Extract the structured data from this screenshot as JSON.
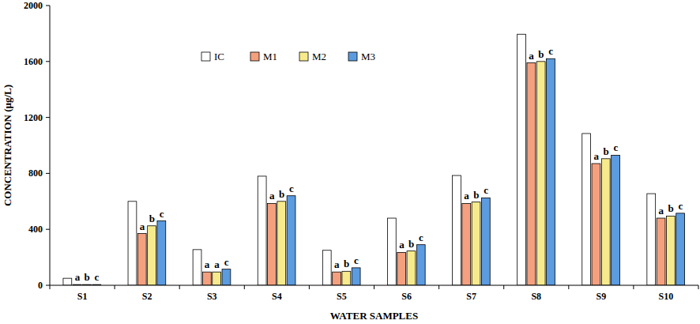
{
  "chart_data": {
    "type": "bar",
    "x_label": "WATER SAMPLES",
    "y_label": "CONCENTRATION (µg/L)",
    "categories": [
      "S1",
      "S2",
      "S3",
      "S4",
      "S5",
      "S6",
      "S7",
      "S8",
      "S9",
      "S10"
    ],
    "series": [
      {
        "name": "IC",
        "color": "#ffffff",
        "values": [
          50,
          600,
          255,
          780,
          250,
          480,
          785,
          1795,
          1085,
          655
        ]
      },
      {
        "name": "M1",
        "color": "#f4a07e",
        "values": [
          5,
          370,
          95,
          585,
          95,
          235,
          585,
          1590,
          870,
          480
        ],
        "annotations": [
          "a",
          "a",
          "a",
          "a",
          "a",
          "a",
          "a",
          "a",
          "a",
          "a"
        ]
      },
      {
        "name": "M2",
        "color": "#f7ea8c",
        "values": [
          5,
          425,
          95,
          600,
          100,
          245,
          595,
          1600,
          905,
          495
        ],
        "annotations": [
          "b",
          "b",
          "a",
          "b",
          "b",
          "b",
          "b",
          "b",
          "b",
          "b"
        ]
      },
      {
        "name": "M3",
        "color": "#5b9be0",
        "values": [
          5,
          460,
          115,
          640,
          125,
          290,
          625,
          1620,
          930,
          515
        ],
        "annotations": [
          "c",
          "c",
          "c",
          "c",
          "c",
          "c",
          "c",
          "c",
          "c",
          "c"
        ]
      }
    ],
    "ylim": [
      0,
      2000
    ],
    "yticks": [
      0,
      400,
      800,
      1200,
      1600,
      2000
    ],
    "grid": false,
    "legend": "top"
  }
}
